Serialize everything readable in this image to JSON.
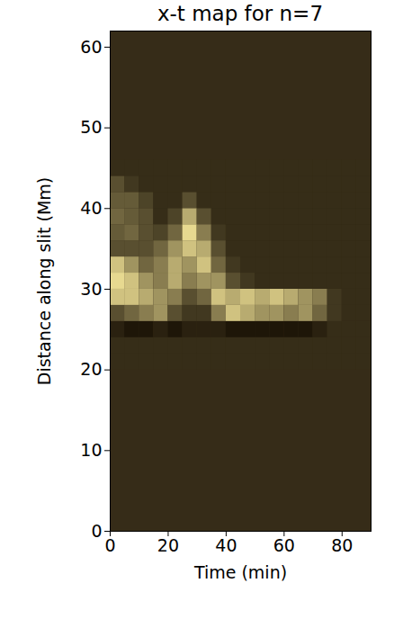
{
  "chart_data": {
    "type": "heatmap",
    "title": "x-t map for n=7",
    "x_label": "Time (min)",
    "y_label": "Distance along slit (Mm)",
    "xlim": [
      0,
      90
    ],
    "ylim": [
      0,
      62
    ],
    "xticks": [
      0,
      20,
      40,
      60,
      80
    ],
    "yticks": [
      0,
      10,
      20,
      30,
      40,
      50,
      60
    ],
    "zlim": [
      0,
      1
    ],
    "x": [
      2.5,
      7.5,
      12.5,
      17.5,
      22.5,
      27.5,
      32.5,
      37.5,
      42.5,
      47.5,
      52.5,
      57.5,
      62.5,
      67.5,
      72.5,
      77.5,
      82.5,
      87.5
    ],
    "y": [
      21,
      23,
      25,
      27,
      29,
      31,
      33,
      35,
      37,
      39,
      41,
      43,
      45
    ],
    "z": [
      [
        0.15,
        0.15,
        0.15,
        0.15,
        0.15,
        0.15,
        0.15,
        0.15,
        0.15,
        0.15,
        0.15,
        0.15,
        0.15,
        0.15,
        0.15,
        0.15,
        0.15,
        0.15
      ],
      [
        0.15,
        0.15,
        0.15,
        0.15,
        0.15,
        0.15,
        0.15,
        0.15,
        0.15,
        0.15,
        0.15,
        0.15,
        0.15,
        0.15,
        0.15,
        0.15,
        0.15,
        0.15
      ],
      [
        0.1,
        0.05,
        0.05,
        0.1,
        0.05,
        0.1,
        0.1,
        0.1,
        0.05,
        0.05,
        0.05,
        0.05,
        0.05,
        0.05,
        0.1,
        0.15,
        0.15,
        0.15
      ],
      [
        0.3,
        0.4,
        0.5,
        0.6,
        0.3,
        0.2,
        0.2,
        0.5,
        0.8,
        0.7,
        0.6,
        0.6,
        0.5,
        0.6,
        0.4,
        0.2,
        0.15,
        0.15
      ],
      [
        0.8,
        0.8,
        0.7,
        0.6,
        0.5,
        0.3,
        0.4,
        0.8,
        0.7,
        0.8,
        0.7,
        0.8,
        0.7,
        0.6,
        0.5,
        0.2,
        0.15,
        0.15
      ],
      [
        0.9,
        0.8,
        0.6,
        0.5,
        0.7,
        0.5,
        0.6,
        0.6,
        0.3,
        0.2,
        0.15,
        0.15,
        0.15,
        0.15,
        0.15,
        0.15,
        0.15,
        0.15
      ],
      [
        0.8,
        0.6,
        0.4,
        0.5,
        0.7,
        0.6,
        0.8,
        0.4,
        0.2,
        0.15,
        0.15,
        0.15,
        0.15,
        0.15,
        0.15,
        0.15,
        0.15,
        0.15
      ],
      [
        0.3,
        0.3,
        0.3,
        0.4,
        0.6,
        0.8,
        0.7,
        0.3,
        0.15,
        0.15,
        0.15,
        0.15,
        0.15,
        0.15,
        0.15,
        0.15,
        0.15,
        0.15
      ],
      [
        0.35,
        0.4,
        0.3,
        0.25,
        0.4,
        0.9,
        0.5,
        0.2,
        0.15,
        0.15,
        0.15,
        0.15,
        0.15,
        0.15,
        0.15,
        0.15,
        0.15,
        0.15
      ],
      [
        0.4,
        0.35,
        0.3,
        0.15,
        0.25,
        0.7,
        0.3,
        0.15,
        0.15,
        0.15,
        0.15,
        0.15,
        0.15,
        0.15,
        0.15,
        0.15,
        0.15,
        0.15
      ],
      [
        0.35,
        0.35,
        0.25,
        0.15,
        0.15,
        0.3,
        0.15,
        0.15,
        0.15,
        0.15,
        0.15,
        0.15,
        0.15,
        0.15,
        0.15,
        0.15,
        0.15,
        0.15
      ],
      [
        0.3,
        0.2,
        0.15,
        0.15,
        0.15,
        0.15,
        0.15,
        0.15,
        0.15,
        0.15,
        0.15,
        0.15,
        0.15,
        0.15,
        0.15,
        0.15,
        0.15,
        0.15
      ],
      [
        0.15,
        0.15,
        0.15,
        0.15,
        0.15,
        0.15,
        0.15,
        0.15,
        0.15,
        0.15,
        0.15,
        0.15,
        0.15,
        0.15,
        0.15,
        0.15,
        0.15,
        0.15
      ]
    ]
  }
}
